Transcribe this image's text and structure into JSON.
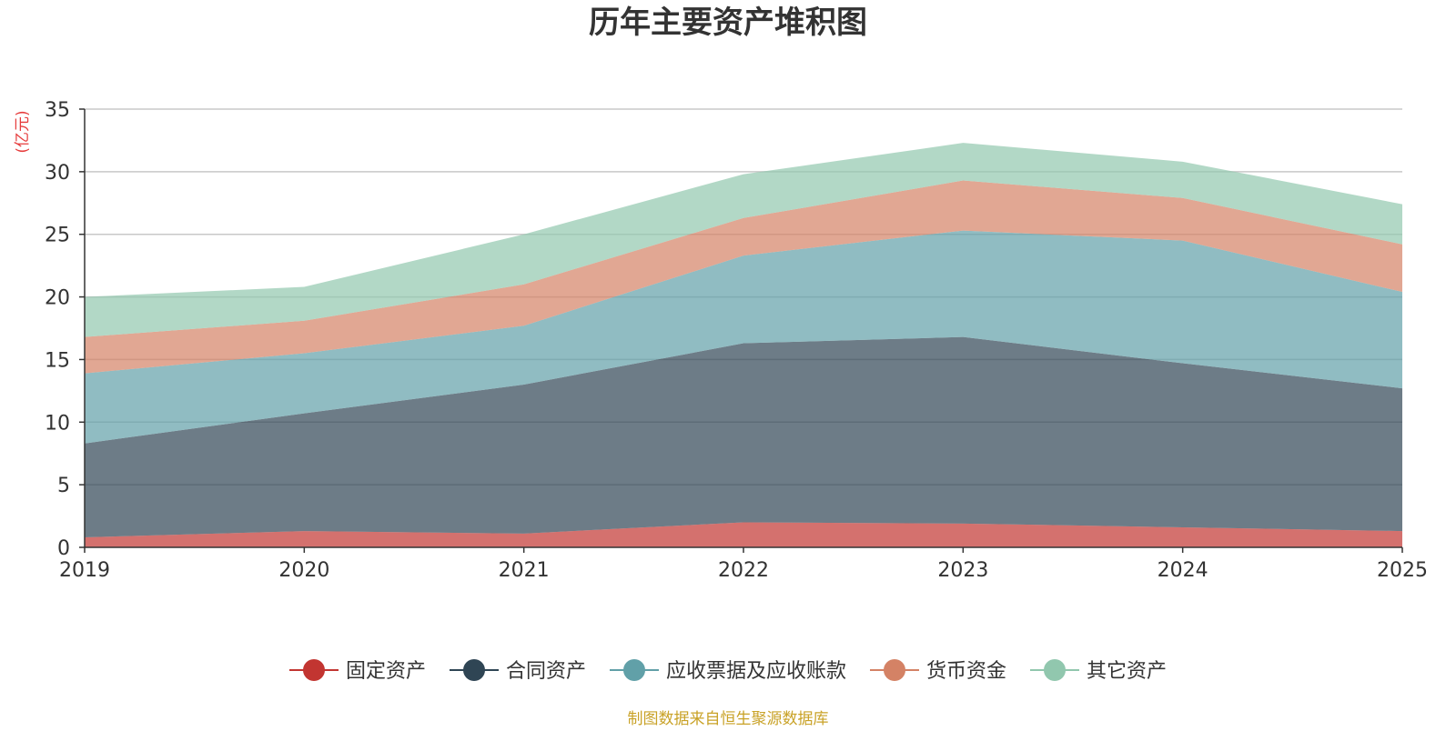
{
  "chart_data": {
    "type": "area",
    "stacked": true,
    "title": "历年主要资产堆积图",
    "ylabel": "(亿元)",
    "xlabel": "",
    "categories": [
      "2019",
      "2020",
      "2021",
      "2022",
      "2023",
      "2024",
      "2025"
    ],
    "ylim": [
      0,
      35
    ],
    "yticks": [
      0,
      5,
      10,
      15,
      20,
      25,
      30,
      35
    ],
    "grid": true,
    "legend_position": "bottom-center",
    "series": [
      {
        "name": "固定资产",
        "color": "#c23531",
        "values": [
          0.8,
          1.3,
          1.1,
          2.0,
          1.9,
          1.6,
          1.3
        ]
      },
      {
        "name": "合同资产",
        "color": "#2f4554",
        "values": [
          7.5,
          9.4,
          11.9,
          14.3,
          14.9,
          13.1,
          11.4
        ]
      },
      {
        "name": "应收票据及应收账款",
        "color": "#61a0a8",
        "values": [
          5.6,
          4.8,
          4.7,
          7.0,
          8.5,
          9.8,
          7.7
        ]
      },
      {
        "name": "货币资金",
        "color": "#d48265",
        "values": [
          2.9,
          2.6,
          3.3,
          3.0,
          4.0,
          3.4,
          3.8
        ]
      },
      {
        "name": "其它资产",
        "color": "#91c7ae",
        "values": [
          3.2,
          2.7,
          4.0,
          3.5,
          3.0,
          2.9,
          3.2
        ]
      }
    ]
  },
  "footer": {
    "source": "制图数据来自恒生聚源数据库"
  }
}
